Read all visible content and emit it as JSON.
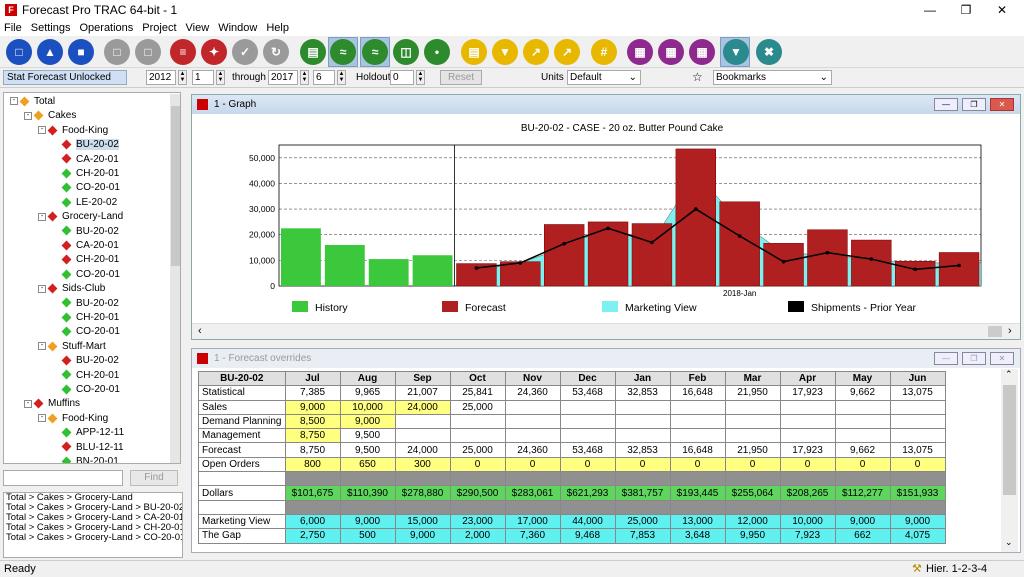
{
  "window": {
    "title": "Forecast Pro TRAC 64-bit - 1"
  },
  "menu": [
    "File",
    "Settings",
    "Operations",
    "Project",
    "View",
    "Window",
    "Help"
  ],
  "params": {
    "stat_label": "Stat Forecast Unlocked",
    "year_from": "2012",
    "period_from": "1",
    "through_label": "through",
    "year_to": "2017",
    "period_to": "6",
    "holdout_label": "Holdout",
    "holdout": "0",
    "reset_label": "Reset",
    "units_label": "Units",
    "units_value": "Default",
    "bookmarks_value": "Bookmarks"
  },
  "tree": [
    {
      "label": "Total",
      "level": 0,
      "icon": "orange",
      "exp": "-"
    },
    {
      "label": "Cakes",
      "level": 1,
      "icon": "orange",
      "exp": "-"
    },
    {
      "label": "Food-King",
      "level": 2,
      "icon": "red",
      "exp": "-"
    },
    {
      "label": "BU-20-02",
      "level": 3,
      "icon": "red",
      "sel": true
    },
    {
      "label": "CA-20-01",
      "level": 3,
      "icon": "red"
    },
    {
      "label": "CH-20-01",
      "level": 3,
      "icon": "green"
    },
    {
      "label": "CO-20-01",
      "level": 3,
      "icon": "green"
    },
    {
      "label": "LE-20-02",
      "level": 3,
      "icon": "green"
    },
    {
      "label": "Grocery-Land",
      "level": 2,
      "icon": "red",
      "exp": "-"
    },
    {
      "label": "BU-20-02",
      "level": 3,
      "icon": "green"
    },
    {
      "label": "CA-20-01",
      "level": 3,
      "icon": "red"
    },
    {
      "label": "CH-20-01",
      "level": 3,
      "icon": "red"
    },
    {
      "label": "CO-20-01",
      "level": 3,
      "icon": "green"
    },
    {
      "label": "Sids-Club",
      "level": 2,
      "icon": "red",
      "exp": "-"
    },
    {
      "label": "BU-20-02",
      "level": 3,
      "icon": "green"
    },
    {
      "label": "CH-20-01",
      "level": 3,
      "icon": "green"
    },
    {
      "label": "CO-20-01",
      "level": 3,
      "icon": "green"
    },
    {
      "label": "Stuff-Mart",
      "level": 2,
      "icon": "orange",
      "exp": "-"
    },
    {
      "label": "BU-20-02",
      "level": 3,
      "icon": "red"
    },
    {
      "label": "CH-20-01",
      "level": 3,
      "icon": "green"
    },
    {
      "label": "CO-20-01",
      "level": 3,
      "icon": "green"
    },
    {
      "label": "Muffins",
      "level": 1,
      "icon": "red",
      "exp": "-"
    },
    {
      "label": "Food-King",
      "level": 2,
      "icon": "orange",
      "exp": "-"
    },
    {
      "label": "APP-12-11",
      "level": 3,
      "icon": "green"
    },
    {
      "label": "BLU-12-11",
      "level": 3,
      "icon": "red"
    },
    {
      "label": "BN-20-01",
      "level": 3,
      "icon": "green"
    }
  ],
  "find_label": "Find",
  "paths": [
    "Total > Cakes > Grocery-Land",
    "Total > Cakes > Grocery-Land > BU-20-02",
    "Total > Cakes > Grocery-Land > CA-20-01",
    "Total > Cakes > Grocery-Land > CH-20-01",
    "Total > Cakes > Grocery-Land > CO-20-01"
  ],
  "graph_window": {
    "title": "1 - Graph"
  },
  "chart_data": {
    "type": "bar",
    "title": "BU-20-02 - CASE - 20 oz. Butter Pound Cake",
    "ylim": [
      0,
      55000
    ],
    "yticks": [
      "0",
      "10,000",
      "20,000",
      "30,000",
      "40,000",
      "50,000"
    ],
    "x_label_marker": "2018-Jan",
    "history": [
      22500,
      16000,
      10500,
      12000
    ],
    "forecast": [
      8750,
      9500,
      24000,
      25000,
      24360,
      53468,
      32853,
      16648,
      21950,
      17923,
      9662,
      13075
    ],
    "marketing_view": [
      6000,
      9000,
      15000,
      23000,
      17000,
      44000,
      25000,
      13000,
      12000,
      10000,
      9000,
      9000
    ],
    "shipments_prior_year": [
      7000,
      9000,
      16500,
      22500,
      17000,
      30000,
      19500,
      9500,
      13000,
      10500,
      6500,
      8000
    ],
    "legend": [
      "History",
      "Forecast",
      "Marketing View",
      "Shipments - Prior Year"
    ],
    "colors": {
      "history": "#3cc83c",
      "forecast": "#b02020",
      "marketing": "#7ff0f0",
      "shipments": "#000000"
    }
  },
  "overrides_window": {
    "title": "1 - Forecast overrides"
  },
  "grid": {
    "corner": "BU-20-02",
    "months": [
      "Jul",
      "Aug",
      "Sep",
      "Oct",
      "Nov",
      "Dec",
      "Jan",
      "Feb",
      "Mar",
      "Apr",
      "May",
      "Jun"
    ],
    "rows": [
      {
        "label": "Statistical",
        "cls": "",
        "values": [
          "7,385",
          "9,965",
          "21,007",
          "25,841",
          "24,360",
          "53,468",
          "32,853",
          "16,648",
          "21,950",
          "17,923",
          "9,662",
          "13,075"
        ]
      },
      {
        "label": "Sales",
        "cls": "sales",
        "values": [
          "9,000",
          "10,000",
          "24,000",
          "25,000",
          "",
          "",
          "",
          "",
          "",
          "",
          "",
          ""
        ]
      },
      {
        "label": "Demand Planning",
        "cls": "dp",
        "values": [
          "8,500",
          "9,000",
          "",
          "",
          "",
          "",
          "",
          "",
          "",
          "",
          "",
          ""
        ]
      },
      {
        "label": "Management",
        "cls": "mgmt",
        "values": [
          "8,750",
          "9,500",
          "",
          "",
          "",
          "",
          "",
          "",
          "",
          "",
          "",
          ""
        ]
      },
      {
        "label": "Forecast",
        "cls": "",
        "values": [
          "8,750",
          "9,500",
          "24,000",
          "25,000",
          "24,360",
          "53,468",
          "32,853",
          "16,648",
          "21,950",
          "17,923",
          "9,662",
          "13,075"
        ]
      },
      {
        "label": "Open Orders",
        "cls": "cy",
        "values": [
          "800",
          "650",
          "300",
          "0",
          "0",
          "0",
          "0",
          "0",
          "0",
          "0",
          "0",
          "0"
        ]
      },
      {
        "label": "",
        "cls": "cdk",
        "values": [
          "",
          "",
          "",
          "",
          "",
          "",
          "",
          "",
          "",
          "",
          "",
          ""
        ]
      },
      {
        "label": "Dollars",
        "cls": "cg",
        "values": [
          "$101,675",
          "$110,390",
          "$278,880",
          "$290,500",
          "$283,061",
          "$621,293",
          "$381,757",
          "$193,445",
          "$255,064",
          "$208,265",
          "$112,277",
          "$151,933"
        ]
      },
      {
        "label": "",
        "cls": "cdk",
        "values": [
          "",
          "",
          "",
          "",
          "",
          "",
          "",
          "",
          "",
          "",
          "",
          ""
        ]
      },
      {
        "label": "Marketing View",
        "cls": "cc",
        "values": [
          "6,000",
          "9,000",
          "15,000",
          "23,000",
          "17,000",
          "44,000",
          "25,000",
          "13,000",
          "12,000",
          "10,000",
          "9,000",
          "9,000"
        ]
      },
      {
        "label": "The Gap",
        "cls": "cc",
        "values": [
          "2,750",
          "500",
          "9,000",
          "2,000",
          "7,360",
          "9,468",
          "7,853",
          "3,648",
          "9,950",
          "7,923",
          "662",
          "4,075"
        ]
      }
    ]
  },
  "status": {
    "left": "Ready",
    "right": "Hier. 1-2-3-4"
  }
}
